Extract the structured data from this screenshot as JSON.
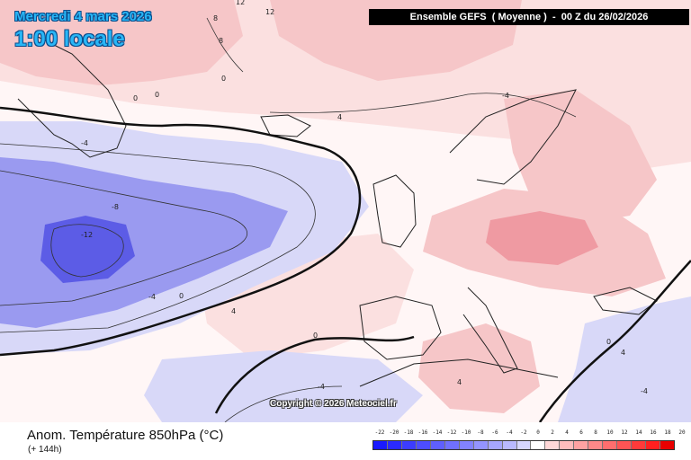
{
  "header": {
    "date": "Mercredi 4 mars 2026",
    "local_time": "1:00 locale",
    "model_run": "Ensemble GEFS  ( Moyenne )  -  00 Z du 26/02/2026"
  },
  "map": {
    "copyright": "Copyright © 2026 Meteociel.fr",
    "isoline_labels": [
      "12",
      "12",
      "8",
      "8",
      "4",
      "0",
      "0",
      "0",
      "-4",
      "-4",
      "-8",
      "-12",
      "-4",
      "0",
      "4",
      "0",
      "-4",
      "4",
      "0",
      "-4",
      "4"
    ],
    "anomaly_colors": {
      "strong_cold": "#5c5ce6",
      "cold": "#9a9af0",
      "cool": "#d8d8f8",
      "neutral": "#ffffff",
      "mild": "#fbe0e0",
      "warm": "#f6c6c8",
      "very_warm": "#ef9aa2"
    }
  },
  "footer": {
    "field_title": "Anom. Température 850hPa (°C)",
    "lead_time": "(+ 144h)"
  },
  "legend": {
    "ticks": [
      "-22",
      "-20",
      "-18",
      "-16",
      "-14",
      "-12",
      "-10",
      "-8",
      "-6",
      "-4",
      "-2",
      "0",
      "2",
      "4",
      "6",
      "8",
      "10",
      "12",
      "14",
      "16",
      "18",
      "20"
    ],
    "colors": [
      "#1a1aff",
      "#2a2aff",
      "#3c3cff",
      "#4d4dff",
      "#5f5fff",
      "#7070ff",
      "#8282ff",
      "#9494ff",
      "#a6a6ff",
      "#b9b9ff",
      "#d6d6ff",
      "#ffffff",
      "#ffd8d8",
      "#ffbcbc",
      "#ffa2a2",
      "#ff8888",
      "#ff6e6e",
      "#ff5454",
      "#ff3a3a",
      "#ff2020",
      "#e80000"
    ]
  }
}
